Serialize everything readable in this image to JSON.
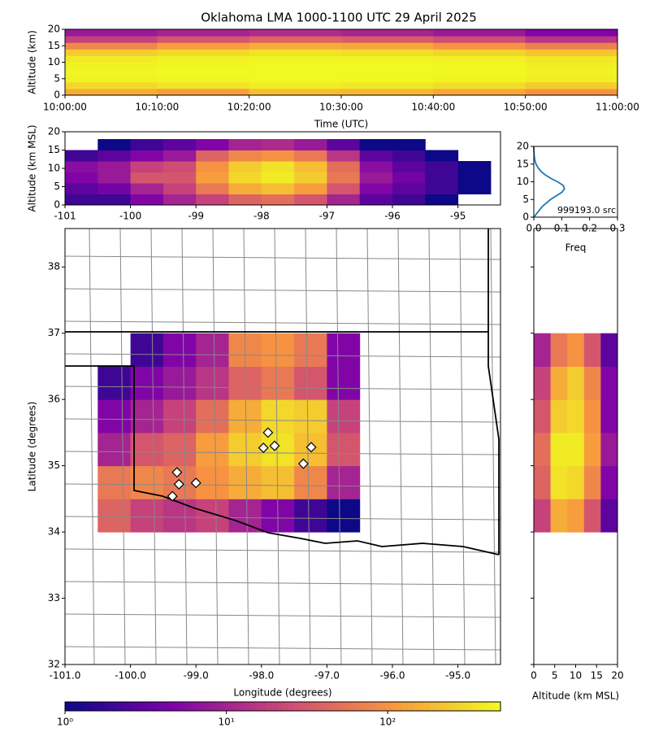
{
  "title": "Oklahoma LMA 1000-1100 UTC 29 April 2025",
  "chart_data": [
    {
      "type": "heatmap",
      "ylabel": "Altitude (km)",
      "xlabel": "Time (UTC)",
      "xticks": [
        "10:00:00",
        "10:10:00",
        "10:20:00",
        "10:30:00",
        "10:40:00",
        "10:50:00",
        "11:00:00"
      ],
      "ylim": [
        0,
        20
      ],
      "yticks": [
        0,
        5,
        10,
        15,
        20
      ],
      "y_bins": [
        0,
        2,
        4,
        6,
        8,
        10,
        12,
        14,
        16,
        18,
        20
      ],
      "values": [
        [
          150,
          120,
          200,
          180,
          140,
          100
        ],
        [
          300,
          350,
          400,
          380,
          320,
          250
        ],
        [
          450,
          480,
          500,
          490,
          470,
          420
        ],
        [
          480,
          500,
          500,
          500,
          490,
          450
        ],
        [
          450,
          480,
          500,
          500,
          480,
          430
        ],
        [
          400,
          450,
          480,
          470,
          440,
          380
        ],
        [
          250,
          300,
          350,
          330,
          280,
          220
        ],
        [
          80,
          120,
          150,
          140,
          100,
          70
        ],
        [
          20,
          30,
          40,
          35,
          25,
          15
        ],
        [
          8,
          10,
          12,
          10,
          8,
          5
        ]
      ]
    },
    {
      "type": "heatmap",
      "ylabel": "Altitude (km MSL)",
      "xlim": [
        -101,
        -94.35
      ],
      "xticks": [
        -101,
        -100,
        -99,
        -98,
        -97,
        -96,
        -95
      ],
      "ylim": [
        0,
        20
      ],
      "yticks": [
        0,
        5,
        10,
        15,
        20
      ],
      "x_bins": [
        -101,
        -100.5,
        -100,
        -99.5,
        -99,
        -98.5,
        -98,
        -97.5,
        -97,
        -96.5,
        -96,
        -95.5,
        -95,
        -94.5
      ],
      "y_bins": [
        0,
        3,
        6,
        9,
        12,
        15,
        18
      ],
      "values": [
        [
          2,
          2,
          5,
          10,
          20,
          40,
          50,
          30,
          10,
          3,
          2,
          1,
          0
        ],
        [
          3,
          4,
          10,
          20,
          60,
          150,
          200,
          120,
          30,
          5,
          3,
          2,
          1
        ],
        [
          5,
          8,
          30,
          30,
          120,
          300,
          400,
          250,
          60,
          8,
          4,
          2,
          1
        ],
        [
          6,
          8,
          20,
          25,
          100,
          250,
          350,
          200,
          50,
          6,
          3,
          2,
          1
        ],
        [
          2,
          3,
          5,
          8,
          40,
          80,
          100,
          60,
          15,
          3,
          2,
          1,
          0
        ],
        [
          0,
          1,
          2,
          3,
          5,
          10,
          12,
          8,
          3,
          1,
          1,
          0,
          0
        ]
      ]
    },
    {
      "type": "line",
      "xlabel": "Freq",
      "annotation": "999193.0 src",
      "xlim": [
        0,
        0.3
      ],
      "xticks": [
        {
          "value": 0,
          "label": "0.0"
        },
        {
          "value": 0.1,
          "label": "0.1"
        },
        {
          "value": 0.2,
          "label": "0.2"
        },
        {
          "value": 0.3,
          "label": "0.3"
        }
      ],
      "ylim": [
        0,
        20
      ],
      "yticks": [
        0,
        5,
        10,
        15,
        20
      ],
      "series": [
        {
          "color": "#1f77b4",
          "x": [
            0,
            0.01,
            0.02,
            0.03,
            0.045,
            0.06,
            0.08,
            0.1,
            0.11,
            0.105,
            0.085,
            0.06,
            0.04,
            0.025,
            0.015,
            0.008,
            0.004,
            0.002,
            0.001,
            0,
            0
          ],
          "y": [
            0,
            1,
            2,
            3,
            4,
            5,
            6,
            7,
            8,
            9,
            10,
            11,
            12,
            13,
            14,
            15,
            16,
            17,
            18,
            19,
            20
          ]
        }
      ]
    },
    {
      "type": "heatmap",
      "xlabel": "Longitude (degrees)",
      "ylabel": "Latitude (degrees)",
      "xlim": [
        -101,
        -94.35
      ],
      "xticks": [
        {
          "value": -101,
          "label": "-101.0"
        },
        {
          "value": -100,
          "label": "-100.0"
        },
        {
          "value": -99,
          "label": "-99.0"
        },
        {
          "value": -98,
          "label": "-98.0"
        },
        {
          "value": -97,
          "label": "-97.0"
        },
        {
          "value": -96,
          "label": "-96.0"
        },
        {
          "value": -95,
          "label": "-95.0"
        }
      ],
      "ylim": [
        32,
        38.58
      ],
      "yticks": [
        32,
        33,
        34,
        35,
        36,
        37,
        38
      ],
      "x_bins": [
        -100.5,
        -100,
        -99.5,
        -99,
        -98.5,
        -98,
        -97.5,
        -97,
        -96.5
      ],
      "y_bins": [
        34,
        34.5,
        35,
        35.5,
        36,
        36.5,
        37
      ],
      "values": [
        [
          40,
          20,
          15,
          20,
          10,
          5,
          2,
          1
        ],
        [
          60,
          80,
          60,
          100,
          150,
          200,
          80,
          10
        ],
        [
          10,
          30,
          40,
          120,
          250,
          350,
          200,
          30
        ],
        [
          5,
          10,
          20,
          50,
          150,
          300,
          250,
          20
        ],
        [
          2,
          5,
          8,
          15,
          40,
          60,
          30,
          5
        ],
        [
          0,
          2,
          5,
          10,
          80,
          100,
          60,
          5
        ]
      ],
      "points": {
        "color": "#ffffff",
        "x": [
          -97.9,
          -97.97,
          -97.8,
          -97.24,
          -97.36,
          -99.29,
          -99.26,
          -99.36,
          -99.0
        ],
        "y": [
          35.5,
          35.27,
          35.3,
          35.28,
          35.03,
          34.9,
          34.72,
          34.54,
          34.74
        ]
      }
    },
    {
      "type": "heatmap",
      "xlabel": "Altitude (km MSL)",
      "xlim": [
        0,
        20
      ],
      "xticks": [
        0,
        5,
        10,
        15,
        20
      ],
      "ylim": [
        32,
        38.58
      ],
      "yticks": [
        32,
        33,
        34,
        35,
        36,
        37,
        38
      ],
      "x_bins": [
        0,
        4,
        8,
        12,
        16,
        20
      ],
      "y_bins": [
        34,
        34.5,
        35,
        35.5,
        36,
        36.5,
        37
      ],
      "values": [
        [
          20,
          150,
          120,
          30,
          3
        ],
        [
          40,
          350,
          300,
          80,
          5
        ],
        [
          50,
          400,
          400,
          120,
          8
        ],
        [
          30,
          250,
          300,
          100,
          5
        ],
        [
          20,
          150,
          250,
          80,
          5
        ],
        [
          10,
          60,
          100,
          30,
          3
        ]
      ]
    },
    {
      "type": "colorbar",
      "log": true,
      "xlim": [
        1,
        500
      ],
      "xticks": [
        {
          "value": 1,
          "label": "10⁰"
        },
        {
          "value": 10,
          "label": "10¹"
        },
        {
          "value": 100,
          "label": "10²"
        }
      ]
    }
  ]
}
